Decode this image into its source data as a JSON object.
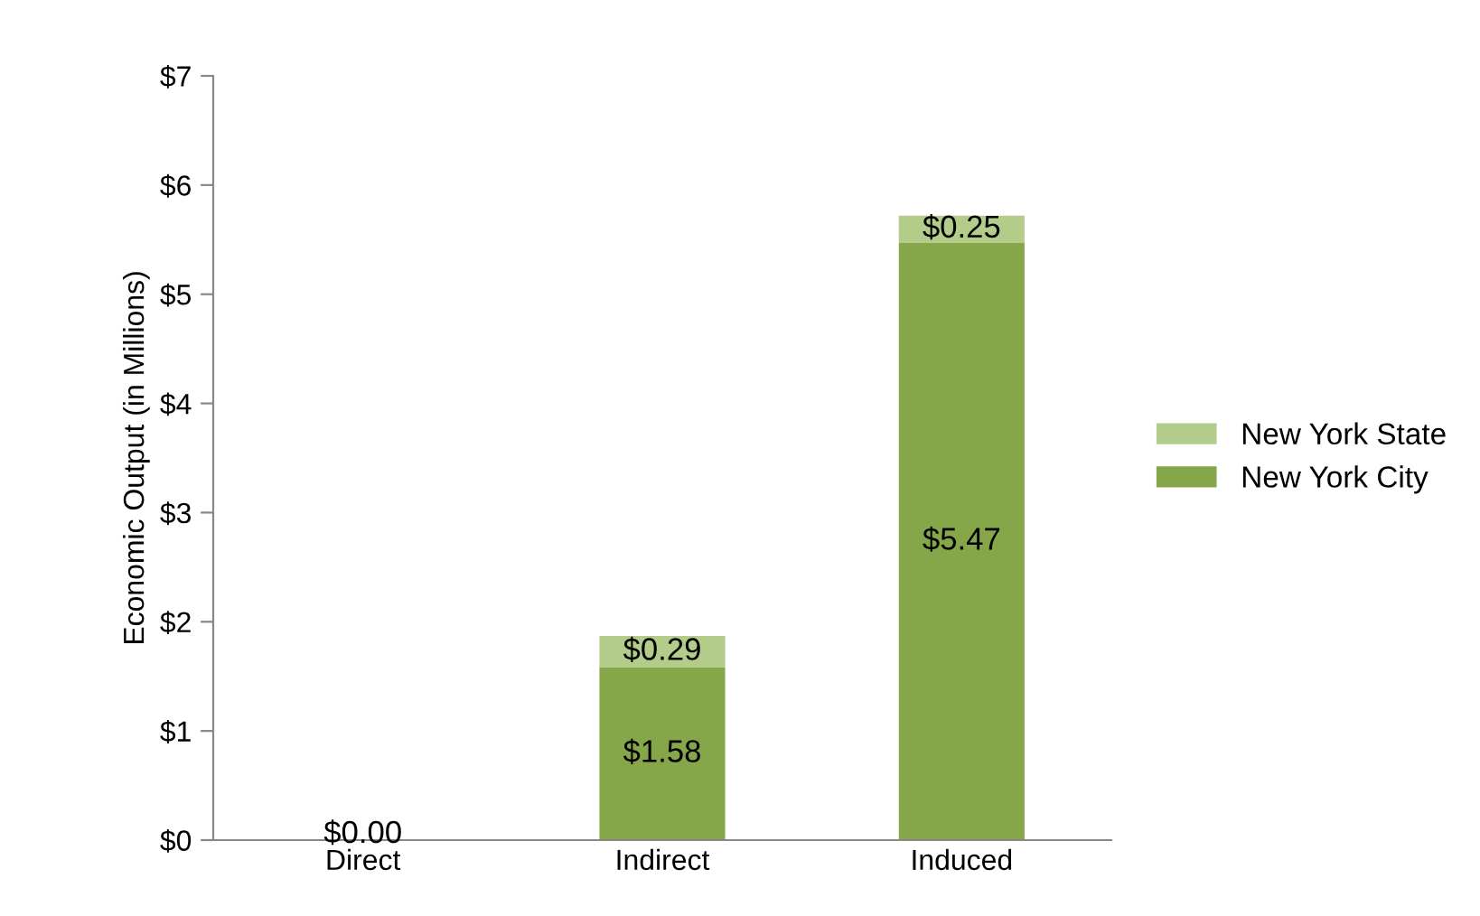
{
  "chart_data": {
    "type": "bar",
    "ylabel": "Economic Output (in Millions)",
    "categories": [
      "Direct",
      "Indirect",
      "Induced"
    ],
    "stacked": true,
    "series": [
      {
        "name": "New York City",
        "color": "#86a64a",
        "values": [
          0,
          1.58,
          5.47
        ],
        "value_labels": [
          "$0.00",
          "$1.58",
          "$5.47"
        ]
      },
      {
        "name": "New York State",
        "color": "#b3cc8a",
        "values": [
          0,
          0.29,
          0.25
        ],
        "value_labels": [
          null,
          "$0.29",
          "$0.25"
        ]
      }
    ],
    "ylim": [
      0,
      7
    ],
    "yticks": [
      {
        "value": 0,
        "label": "$0"
      },
      {
        "value": 1,
        "label": "$1"
      },
      {
        "value": 2,
        "label": "$2"
      },
      {
        "value": 3,
        "label": "$3"
      },
      {
        "value": 4,
        "label": "$4"
      },
      {
        "value": 5,
        "label": "$5"
      },
      {
        "value": 6,
        "label": "$6"
      },
      {
        "value": 7,
        "label": "$7"
      }
    ],
    "grid": false,
    "legend": "right"
  }
}
